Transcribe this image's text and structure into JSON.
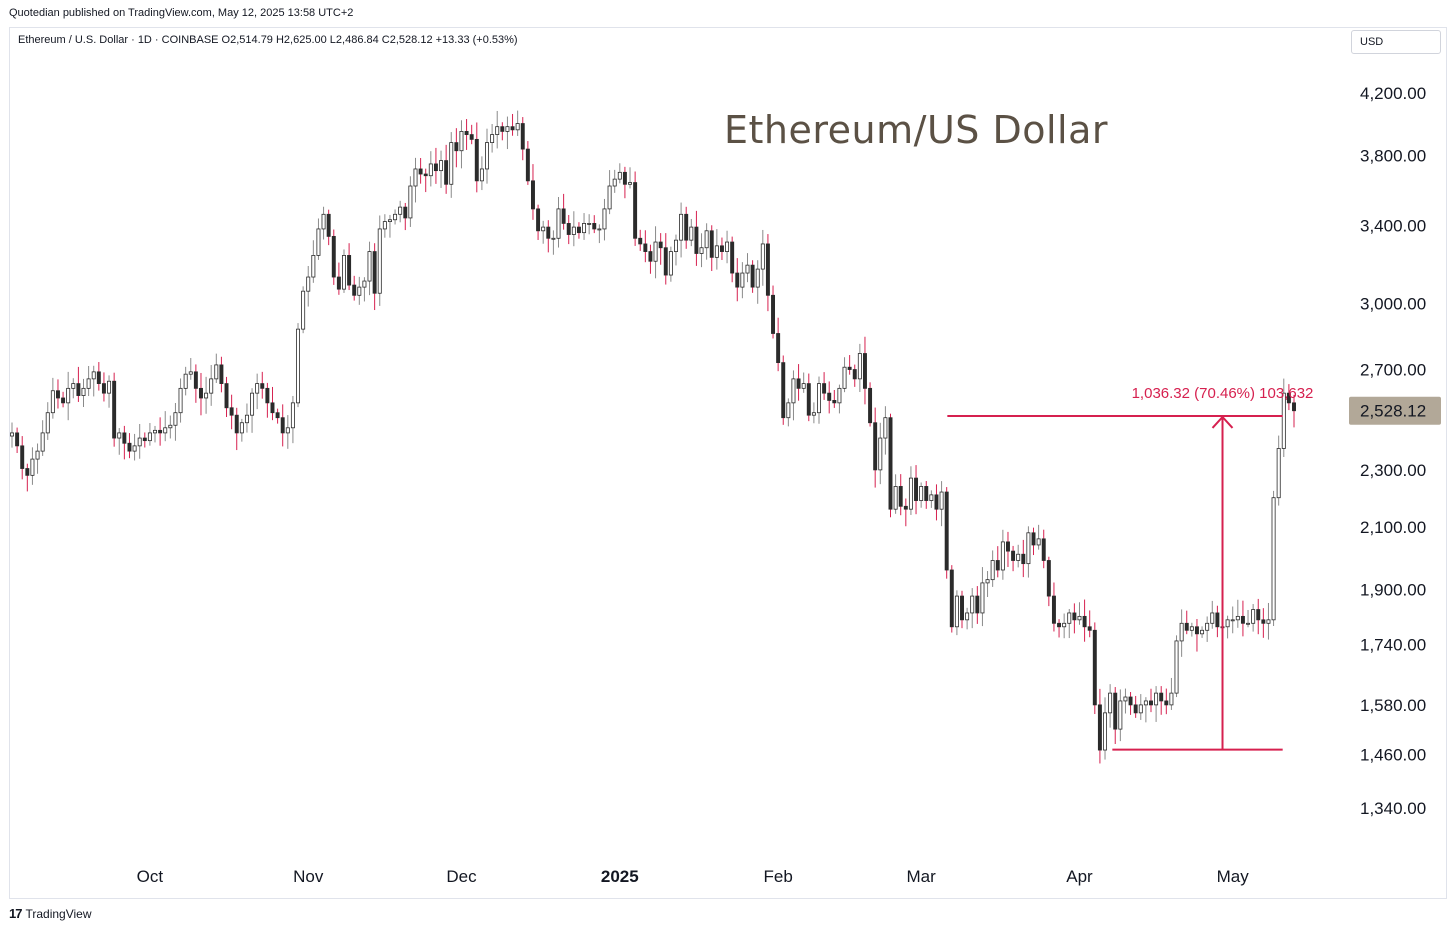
{
  "header": {
    "publisher": "Quotedian published on TradingView.com, May 12, 2025 13:58 UTC+2",
    "legend": "Ethereum / U.S. Dollar · 1D · COINBASE  O2,514.79  H2,625.00  L2,486.84  C2,528.12  +13.33 (+0.53%)",
    "currency": "USD"
  },
  "footer": {
    "brand_mark": "17",
    "brand": "TradingView"
  },
  "colors": {
    "up": "#ffffff",
    "down": "#2b2b2b",
    "wick": "#d6204f",
    "measure": "#d6204f",
    "price_tag": "#b2a898",
    "title": "#5b5145"
  },
  "chart_data": {
    "type": "candlestick",
    "title": "Ethereum/US Dollar",
    "ylim": [
      1250,
      4350
    ],
    "y_scale": "log",
    "y_ticks": [
      {
        "value": 4200,
        "label": "4,200.00"
      },
      {
        "value": 3800,
        "label": "3,800.00"
      },
      {
        "value": 3400,
        "label": "3,400.00"
      },
      {
        "value": 3000,
        "label": "3,000.00"
      },
      {
        "value": 2700,
        "label": "2,700.00"
      },
      {
        "value": 2300,
        "label": "2,300.00"
      },
      {
        "value": 2100,
        "label": "2,100.00"
      },
      {
        "value": 1900,
        "label": "1,900.00"
      },
      {
        "value": 1740,
        "label": "1,740.00"
      },
      {
        "value": 1580,
        "label": "1,580.00"
      },
      {
        "value": 1460,
        "label": "1,460.00"
      },
      {
        "value": 1340,
        "label": "1,340.00"
      }
    ],
    "x_ticks": [
      {
        "date": "2024-10-01",
        "label": "Oct",
        "bold": false
      },
      {
        "date": "2024-11-01",
        "label": "Nov",
        "bold": false
      },
      {
        "date": "2024-12-01",
        "label": "Dec",
        "bold": false
      },
      {
        "date": "2025-01-01",
        "label": "2025",
        "bold": true
      },
      {
        "date": "2025-02-01",
        "label": "Feb",
        "bold": false
      },
      {
        "date": "2025-03-01",
        "label": "Mar",
        "bold": false
      },
      {
        "date": "2025-04-01",
        "label": "Apr",
        "bold": false
      },
      {
        "date": "2025-05-01",
        "label": "May",
        "bold": false
      }
    ],
    "last_price": {
      "value": 2528.12,
      "label": "2,528.12"
    },
    "measure": {
      "label": "1,036.32 (70.46%) 103,632",
      "from_date": "2025-04-09",
      "to_date": "2025-05-10",
      "from_price": 1471,
      "to_price": 2507
    },
    "candles_start_date": "2024-09-04",
    "closes": [
      2440,
      2390,
      2305,
      2280,
      2340,
      2370,
      2440,
      2520,
      2610,
      2580,
      2560,
      2620,
      2640,
      2590,
      2620,
      2660,
      2690,
      2640,
      2600,
      2650,
      2420,
      2440,
      2400,
      2370,
      2390,
      2420,
      2410,
      2440,
      2450,
      2440,
      2460,
      2470,
      2520,
      2620,
      2680,
      2690,
      2620,
      2580,
      2600,
      2660,
      2720,
      2640,
      2540,
      2510,
      2440,
      2480,
      2510,
      2600,
      2640,
      2620,
      2560,
      2520,
      2500,
      2440,
      2460,
      2560,
      2880,
      3060,
      3130,
      3240,
      3380,
      3460,
      3340,
      3130,
      3070,
      3240,
      3090,
      3040,
      3080,
      3110,
      3260,
      3050,
      3380,
      3420,
      3430,
      3460,
      3500,
      3440,
      3620,
      3720,
      3690,
      3680,
      3750,
      3710,
      3770,
      3630,
      3880,
      3830,
      3950,
      3930,
      3900,
      3650,
      3720,
      3880,
      3930,
      3980,
      3950,
      3980,
      3960,
      4000,
      3840,
      3650,
      3490,
      3370,
      3390,
      3330,
      3330,
      3490,
      3410,
      3350,
      3390,
      3360,
      3410,
      3410,
      3380,
      3380,
      3490,
      3620,
      3660,
      3700,
      3630,
      3640,
      3330,
      3300,
      3260,
      3210,
      3310,
      3280,
      3140,
      3260,
      3320,
      3460,
      3320,
      3390,
      3250,
      3280,
      3370,
      3230,
      3290,
      3260,
      3310,
      3150,
      3080,
      3150,
      3190,
      3080,
      3170,
      3300,
      3040,
      2860,
      2730,
      2500,
      2560,
      2660,
      2620,
      2640,
      2510,
      2520,
      2640,
      2600,
      2570,
      2560,
      2620,
      2710,
      2700,
      2660,
      2770,
      2620,
      2480,
      2300,
      2420,
      2500,
      2160,
      2240,
      2170,
      2160,
      2270,
      2190,
      2240,
      2190,
      2210,
      2160,
      2220,
      1960,
      1790,
      1880,
      1810,
      1830,
      1880,
      1830,
      1920,
      1930,
      1990,
      1960,
      2050,
      2020,
      1990,
      2010,
      1980,
      2080,
      2040,
      2060,
      1990,
      1880,
      1800,
      1790,
      1800,
      1830,
      1810,
      1820,
      1790,
      1780,
      1580,
      1470,
      1560,
      1610,
      1520,
      1590,
      1600,
      1580,
      1560,
      1580,
      1590,
      1580,
      1610,
      1590,
      1580,
      1610,
      1750,
      1800,
      1780,
      1790,
      1770,
      1780,
      1800,
      1830,
      1790,
      1790,
      1810,
      1810,
      1820,
      1800,
      1800,
      1840,
      1810,
      1800,
      1810,
      2200,
      2380,
      2600,
      2560,
      2528
    ]
  }
}
